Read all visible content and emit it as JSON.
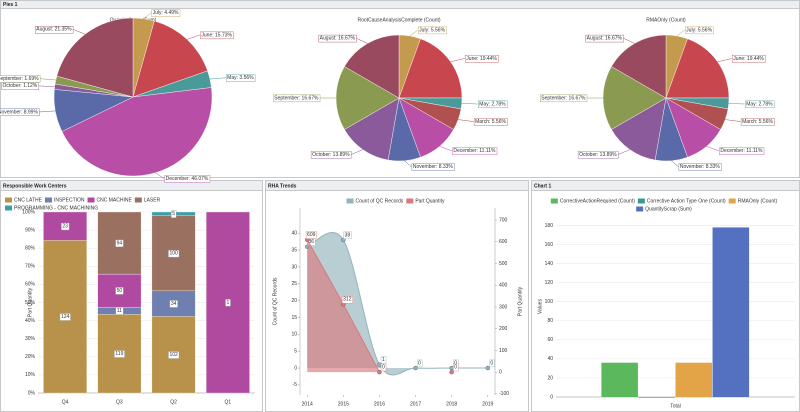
{
  "panels": [
    "Pies 1",
    "Responsible Work Centers",
    "RHA Trends",
    "Chart 1"
  ],
  "chart_data": [
    {
      "type": "pie",
      "title": "QuantityScrap (Sum)",
      "categories": [
        "July",
        "June",
        "May",
        "December",
        "November",
        "October",
        "September",
        "August"
      ],
      "values": [
        4.49,
        15.73,
        3.56,
        46.07,
        8.99,
        1.12,
        1.69,
        21.35
      ],
      "value_labels": [
        "July: 4.49%",
        "June: 15.73%",
        "May: 3.56%",
        "December: 46.07%",
        "November: 8.99%",
        "October: 1.12%",
        "September: 1.69%",
        "August: 21.35%"
      ],
      "colors": [
        "#c49a4e",
        "#c8474f",
        "#4a9a9a",
        "#b84ea6",
        "#5a6aa8",
        "#8a5a9a",
        "#8a9a50",
        "#9a4a5e"
      ]
    },
    {
      "type": "pie",
      "title": "RootCauseAnalysisComplete (Count)",
      "categories": [
        "July",
        "June",
        "May",
        "March",
        "December",
        "November",
        "October",
        "September",
        "August"
      ],
      "values": [
        5.56,
        19.44,
        2.78,
        5.56,
        11.11,
        8.33,
        13.89,
        16.67,
        16.67
      ],
      "value_labels": [
        "July: 5.56%",
        "June: 19.44%",
        "May: 2.78%",
        "March: 5.56%",
        "December: 11.11%",
        "November: 8.33%",
        "October: 13.89%",
        "September: 16.67%",
        "August: 16.67%"
      ],
      "colors": [
        "#c49a4e",
        "#c8474f",
        "#4a9a9a",
        "#b05050",
        "#b84ea6",
        "#5a6aa8",
        "#8a5a9a",
        "#8a9a50",
        "#9a4a5e"
      ]
    },
    {
      "type": "pie",
      "title": "RMAOnly (Count)",
      "categories": [
        "July",
        "June",
        "May",
        "March",
        "December",
        "November",
        "October",
        "September",
        "August"
      ],
      "values": [
        5.56,
        19.44,
        2.78,
        5.56,
        11.11,
        8.33,
        13.89,
        16.67,
        16.67
      ],
      "value_labels": [
        "July: 5.56%",
        "June: 19.44%",
        "May: 2.78%",
        "March: 5.56%",
        "December: 11.11%",
        "November: 8.33%",
        "October: 13.89%",
        "September: 16.67%",
        "August: 16.67%"
      ],
      "colors": [
        "#c49a4e",
        "#c8474f",
        "#4a9a9a",
        "#b05050",
        "#b84ea6",
        "#5a6aa8",
        "#8a5a9a",
        "#8a9a50",
        "#9a4a5e"
      ]
    },
    {
      "type": "bar",
      "stacked": "percent",
      "ylabel": "Part Quantity",
      "categories": [
        "Q4",
        "Q3",
        "Q2",
        "Q1"
      ],
      "series": [
        {
          "name": "CNC LATHE",
          "color": "#b8914a",
          "values": [
            124,
            119,
            102,
            null
          ]
        },
        {
          "name": "INSPECTION",
          "color": "#6f7fb0",
          "values": [
            null,
            11,
            34,
            null
          ]
        },
        {
          "name": "CNC MACHINE",
          "color": "#b04aa0",
          "values": [
            23,
            50,
            null,
            1
          ]
        },
        {
          "name": "LASER",
          "color": "#9a7060",
          "values": [
            null,
            94,
            100,
            null
          ]
        },
        {
          "name": "PROGRAMMING - CNC MACHINING",
          "color": "#3aa0a8",
          "values": [
            null,
            null,
            5,
            null
          ]
        }
      ],
      "ylim": [
        0,
        100
      ],
      "yticks": [
        {
          "value": 0,
          "label": "0%"
        },
        {
          "value": 10,
          "label": "10%"
        },
        {
          "value": 20,
          "label": "20%"
        },
        {
          "value": 30,
          "label": "30%"
        },
        {
          "value": 40,
          "label": "40%"
        },
        {
          "value": 50,
          "label": "50%"
        },
        {
          "value": 60,
          "label": "60%"
        },
        {
          "value": 70,
          "label": "70%"
        },
        {
          "value": 80,
          "label": "80%"
        },
        {
          "value": 90,
          "label": "90%"
        },
        {
          "value": 100,
          "label": "100%"
        }
      ],
      "grid": true
    },
    {
      "type": "line",
      "area": true,
      "ylabel": "Count of QC Records",
      "y2label": "Part Quantity",
      "x": [
        2014,
        2015,
        2016,
        2017,
        2018,
        2019
      ],
      "xlim": [
        2013.8,
        2019.2
      ],
      "xticks": [
        2014,
        2015,
        2016,
        2017,
        2018,
        2019
      ],
      "series": [
        {
          "name": "Count of QC Records",
          "color": "#93b4bc",
          "values": [
            36,
            38,
            1,
            0,
            0,
            0
          ]
        },
        {
          "name": "Part Quantity",
          "color": "#d97a7e",
          "axis": "y2",
          "values": [
            609,
            312,
            0,
            null,
            0,
            null
          ]
        }
      ],
      "ylim": [
        -8,
        47.5
      ],
      "yticks": [
        -5,
        0,
        5,
        10,
        15,
        20,
        25,
        30,
        35,
        40
      ],
      "y2lim": [
        -105,
        755
      ],
      "y2ticks": [
        -100,
        0,
        100,
        200,
        300,
        400,
        500,
        600,
        700
      ]
    },
    {
      "type": "bar",
      "ylabel": "Values",
      "categories": [
        "Total"
      ],
      "series": [
        {
          "name": "CorrectiveActionRequired (Count)",
          "color": "#5cb85c",
          "values": [
            36
          ]
        },
        {
          "name": "Corrective Action Type One (Count)",
          "color": "#3a9a8a",
          "values": [
            0
          ]
        },
        {
          "name": "RMAOnly (Count)",
          "color": "#e2a446",
          "values": [
            36
          ]
        },
        {
          "name": "QuantityScrap (Sum)",
          "color": "#5470c0",
          "values": [
            178
          ]
        }
      ],
      "ylim": [
        0,
        190
      ],
      "yticks": [
        0,
        20,
        40,
        60,
        80,
        100,
        120,
        140,
        160,
        180
      ],
      "grid": true
    }
  ]
}
